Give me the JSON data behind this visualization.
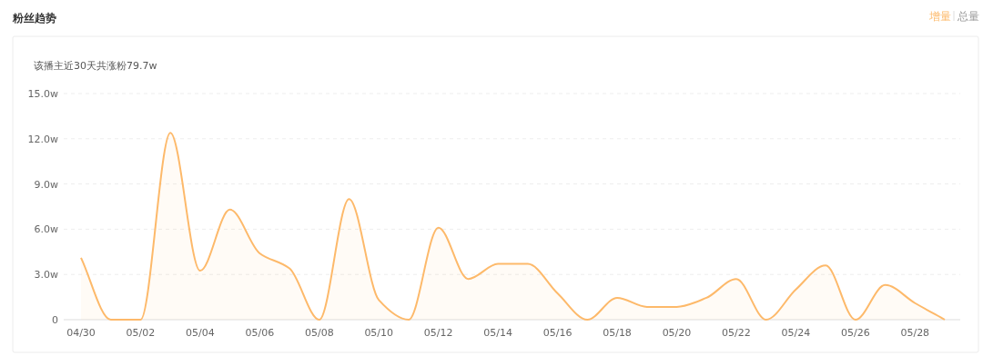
{
  "chart_data": {
    "type": "area",
    "title": "粉丝趋势",
    "subtitle": "该播主近30天共涨粉79.7w",
    "annotations": [
      "增量",
      "总量"
    ],
    "categories": [
      "04/30",
      null,
      "05/02",
      null,
      "05/04",
      null,
      "05/06",
      null,
      "05/08",
      null,
      "05/10",
      null,
      "05/12",
      null,
      "05/14",
      null,
      "05/16",
      null,
      "05/18",
      null,
      "05/20",
      null,
      "05/22",
      null,
      "05/24",
      null,
      "05/26",
      null,
      "05/28",
      null
    ],
    "series": [
      {
        "color": "#fdb96a",
        "values": [
          4.1,
          0,
          0,
          12.4,
          3.25,
          7.3,
          4.4,
          3.4,
          0,
          8.0,
          1.3,
          0,
          6.1,
          2.7,
          3.7,
          3.7,
          1.75,
          0,
          1.45,
          0.85,
          0.85,
          1.45,
          2.7,
          0,
          2.0,
          3.6,
          0,
          2.3,
          1.1,
          0
        ]
      }
    ],
    "ylim": [
      0,
      15
    ],
    "yticks": [
      0,
      {
        "value": 3,
        "label": "3.0w"
      },
      {
        "value": 6,
        "label": "6.0w"
      },
      {
        "value": 9,
        "label": "9.0w"
      },
      {
        "value": 12,
        "label": "12.0w"
      },
      {
        "value": 15,
        "label": "15.0w"
      }
    ],
    "grid": "y",
    "marker": "none",
    "line_style": "solid"
  }
}
